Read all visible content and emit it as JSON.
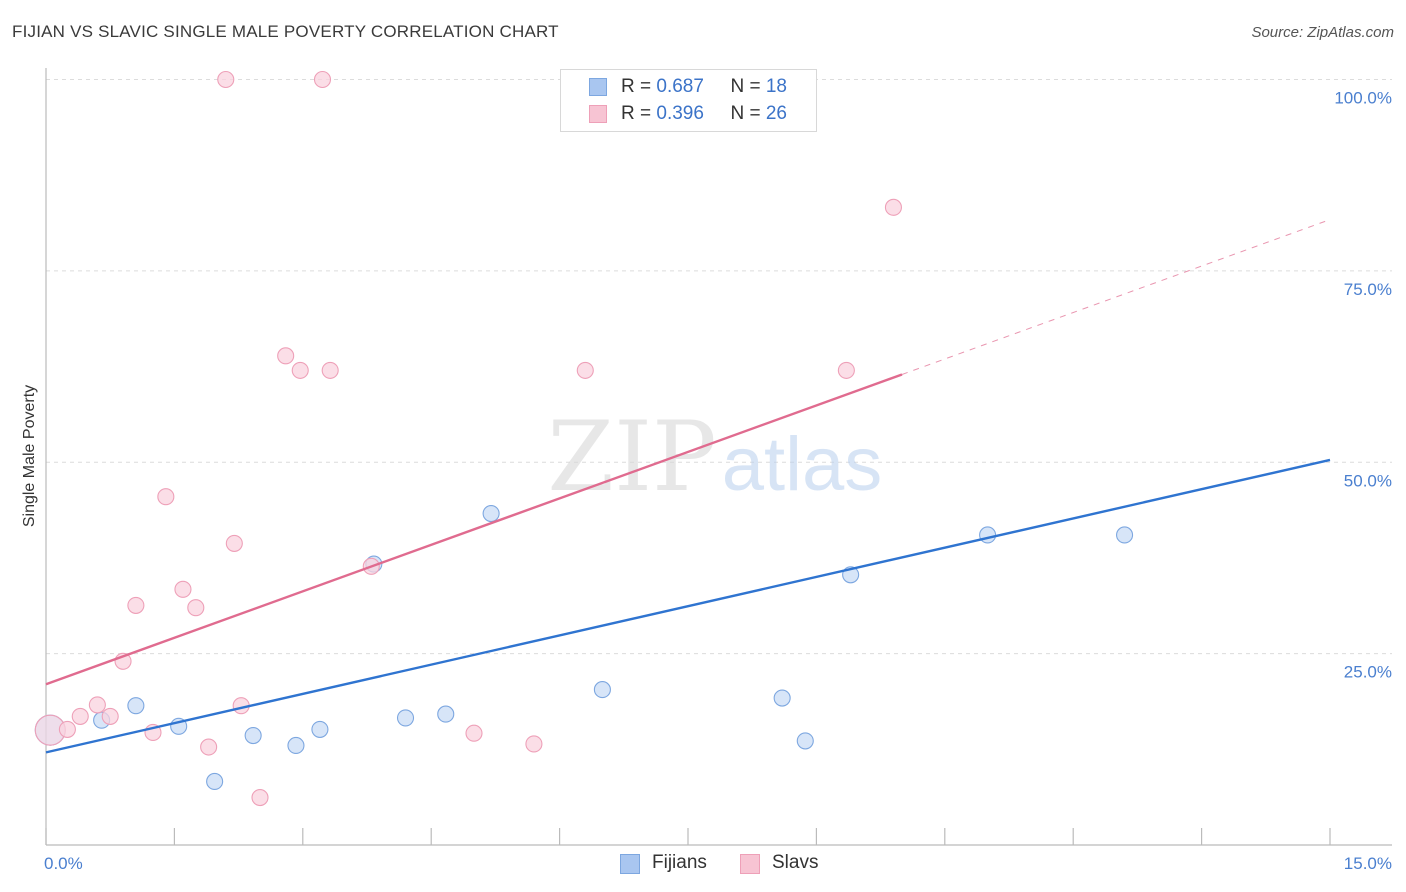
{
  "title": "FIJIAN VS SLAVIC SINGLE MALE POVERTY CORRELATION CHART",
  "source": "Source: ZipAtlas.com",
  "watermark": {
    "zip": "ZIP",
    "atlas": "atlas"
  },
  "legend": {
    "rows": [
      {
        "r_label": "R = ",
        "r_value": "0.687",
        "n_label": "N = ",
        "n_value": "18",
        "color": "#a9c6f0",
        "border": "#7da7e0"
      },
      {
        "r_label": "R = ",
        "r_value": "0.396",
        "n_label": "N = ",
        "n_value": "26",
        "color": "#f7c4d3",
        "border": "#eea0b8"
      }
    ]
  },
  "bottom_legend": [
    {
      "label": "Fijians",
      "color": "#a9c6f0",
      "border": "#7da7e0"
    },
    {
      "label": "Slavs",
      "color": "#f7c4d3",
      "border": "#eea0b8"
    }
  ],
  "chart_data": {
    "type": "scatter",
    "title": "FIJIAN VS SLAVIC SINGLE MALE POVERTY CORRELATION CHART",
    "xlabel": "",
    "ylabel": "Single Male Poverty",
    "xlim": [
      0,
      15
    ],
    "ylim": [
      0,
      100
    ],
    "x_tick_labels": [
      "0.0%",
      "15.0%"
    ],
    "y_ticks": [
      25,
      50,
      75,
      100
    ],
    "y_tick_labels": [
      "25.0%",
      "50.0%",
      "75.0%",
      "100.0%"
    ],
    "series": [
      {
        "name": "Fijians",
        "color": "#7da7e0",
        "fill": "#c9dcf6",
        "line_color": "#2f74d0",
        "trend": {
          "x0": 0,
          "y0": 12.1,
          "x1": 15,
          "y1": 50.3,
          "solid_until": 15
        },
        "points": [
          {
            "x": 0.05,
            "y": 15.0,
            "big": true
          },
          {
            "x": 0.65,
            "y": 16.3
          },
          {
            "x": 1.05,
            "y": 18.2
          },
          {
            "x": 1.55,
            "y": 15.5
          },
          {
            "x": 1.97,
            "y": 8.3
          },
          {
            "x": 2.42,
            "y": 14.3
          },
          {
            "x": 2.92,
            "y": 13.0
          },
          {
            "x": 3.2,
            "y": 15.1
          },
          {
            "x": 3.83,
            "y": 36.7
          },
          {
            "x": 4.2,
            "y": 16.6
          },
          {
            "x": 4.67,
            "y": 17.1
          },
          {
            "x": 5.2,
            "y": 43.3
          },
          {
            "x": 6.5,
            "y": 20.3
          },
          {
            "x": 8.6,
            "y": 19.2
          },
          {
            "x": 8.87,
            "y": 13.6
          },
          {
            "x": 9.4,
            "y": 35.3
          },
          {
            "x": 11.0,
            "y": 40.5
          },
          {
            "x": 12.6,
            "y": 40.5
          }
        ]
      },
      {
        "name": "Slavs",
        "color": "#eea0b8",
        "fill": "#f9d3df",
        "line_color": "#e06b8f",
        "trend": {
          "x0": 0,
          "y0": 21.0,
          "x1": 15,
          "y1": 81.7,
          "solid_until": 10.0
        },
        "points": [
          {
            "x": 0.05,
            "y": 15.0,
            "big": true
          },
          {
            "x": 0.25,
            "y": 15.1
          },
          {
            "x": 0.4,
            "y": 16.8
          },
          {
            "x": 0.6,
            "y": 18.3
          },
          {
            "x": 0.75,
            "y": 16.8
          },
          {
            "x": 0.9,
            "y": 24.0
          },
          {
            "x": 1.05,
            "y": 31.3
          },
          {
            "x": 1.25,
            "y": 14.7
          },
          {
            "x": 1.4,
            "y": 45.5
          },
          {
            "x": 1.6,
            "y": 33.4
          },
          {
            "x": 1.75,
            "y": 31.0
          },
          {
            "x": 1.9,
            "y": 12.8
          },
          {
            "x": 2.1,
            "y": 100.0
          },
          {
            "x": 2.2,
            "y": 39.4
          },
          {
            "x": 2.28,
            "y": 18.2
          },
          {
            "x": 2.5,
            "y": 6.2
          },
          {
            "x": 2.8,
            "y": 63.9
          },
          {
            "x": 2.97,
            "y": 62.0
          },
          {
            "x": 3.23,
            "y": 100.0
          },
          {
            "x": 3.32,
            "y": 62.0
          },
          {
            "x": 3.8,
            "y": 36.4
          },
          {
            "x": 5.0,
            "y": 14.6
          },
          {
            "x": 5.7,
            "y": 13.2
          },
          {
            "x": 6.3,
            "y": 62.0
          },
          {
            "x": 9.35,
            "y": 62.0
          },
          {
            "x": 9.9,
            "y": 83.3
          }
        ]
      }
    ]
  }
}
